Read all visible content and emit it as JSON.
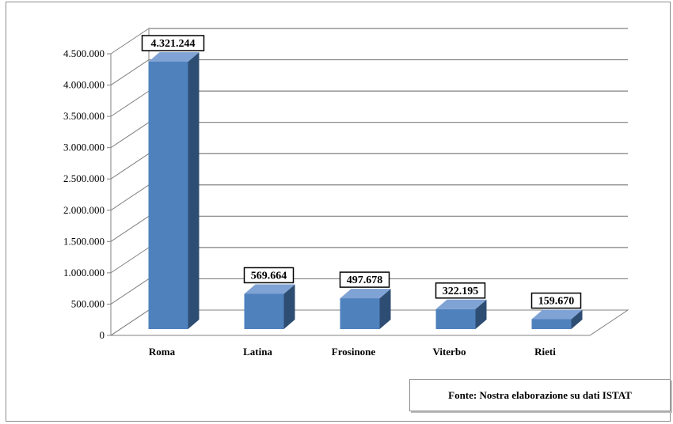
{
  "chart_data": {
    "type": "bar",
    "style": "3d-column",
    "categories": [
      "Roma",
      "Latina",
      "Frosinone",
      "Viterbo",
      "Rieti"
    ],
    "values": [
      4321244,
      569664,
      497678,
      322195,
      159670
    ],
    "data_labels": [
      "4.321.244",
      "569.664",
      "497.678",
      "322.195",
      "159.670"
    ],
    "ylim": [
      0,
      4500000
    ],
    "y_ticks": [
      {
        "value": 0,
        "label": "0"
      },
      {
        "value": 500000,
        "label": "500.000"
      },
      {
        "value": 1000000,
        "label": "1.000.000"
      },
      {
        "value": 1500000,
        "label": "1.500.000"
      },
      {
        "value": 2000000,
        "label": "2.000.000"
      },
      {
        "value": 2500000,
        "label": "2.500.000"
      },
      {
        "value": 3000000,
        "label": "3.000.000"
      },
      {
        "value": 3500000,
        "label": "3.500.000"
      },
      {
        "value": 4000000,
        "label": "4.000.000"
      },
      {
        "value": 4500000,
        "label": "4.500.000"
      }
    ],
    "grid": true,
    "legend": "none",
    "colors": {
      "bar_front": "#4f81bd",
      "bar_side": "#2e4d73",
      "bar_top": "#7fa3d4",
      "grid": "#808080"
    }
  },
  "source_note": "Fonte: Nostra elaborazione su dati ISTAT"
}
